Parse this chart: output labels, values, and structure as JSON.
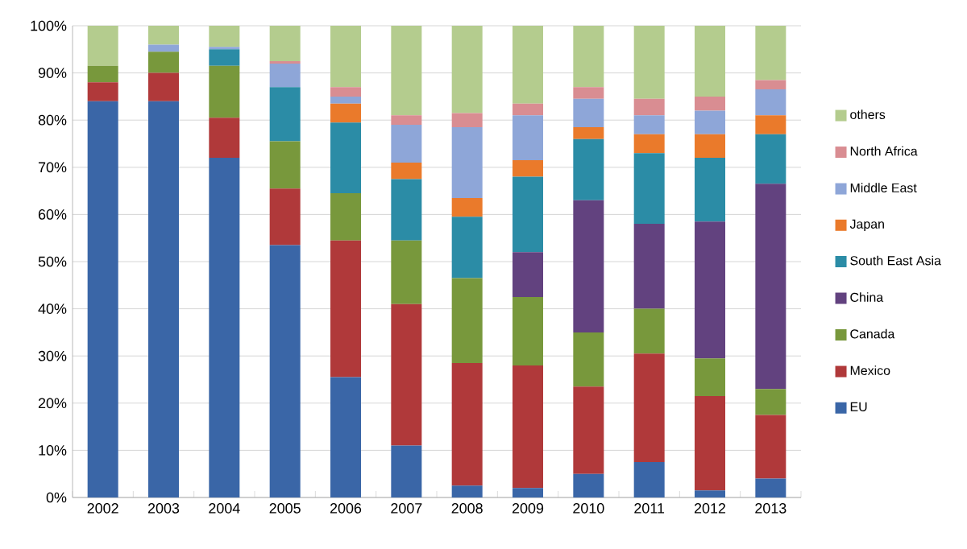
{
  "chart_data": {
    "type": "bar",
    "stacked": true,
    "categories": [
      "2002",
      "2003",
      "2004",
      "2005",
      "2006",
      "2007",
      "2008",
      "2009",
      "2010",
      "2011",
      "2012",
      "2013"
    ],
    "series": [
      {
        "name": "EU",
        "color": "#3a66a7",
        "values": [
          84,
          84,
          72,
          53.5,
          25.5,
          11,
          2.5,
          2,
          5,
          7.5,
          1.5,
          4
        ]
      },
      {
        "name": "Mexico",
        "color": "#b0393a",
        "values": [
          4,
          6,
          8.5,
          12,
          29,
          30,
          26,
          26,
          18.5,
          23,
          20,
          13.5
        ]
      },
      {
        "name": "Canada",
        "color": "#78983c",
        "values": [
          3.5,
          4.5,
          11,
          10,
          10,
          13.5,
          18,
          14.5,
          11.5,
          9.5,
          8,
          5.5
        ]
      },
      {
        "name": "China",
        "color": "#62427f",
        "values": [
          0,
          0,
          0,
          0,
          0,
          0,
          0,
          9.5,
          28,
          18,
          29,
          43.5
        ]
      },
      {
        "name": "South East Asia",
        "color": "#2b8ca6",
        "values": [
          0,
          0,
          3.5,
          11.5,
          15,
          13,
          13,
          16,
          13,
          15,
          13.5,
          10.5
        ]
      },
      {
        "name": "Japan",
        "color": "#ea7a2b",
        "values": [
          0,
          0,
          0,
          0,
          4,
          3.5,
          4,
          3.5,
          2.5,
          4,
          5,
          4
        ]
      },
      {
        "name": "Middle East",
        "color": "#8ea6d8",
        "values": [
          0,
          1.5,
          0.5,
          5,
          1.5,
          8,
          15,
          9.5,
          6,
          4,
          5,
          5.5
        ]
      },
      {
        "name": "North Africa",
        "color": "#d98d92",
        "values": [
          0,
          0,
          0,
          0.5,
          2,
          2,
          3,
          2.5,
          2.5,
          3.5,
          3,
          2
        ]
      },
      {
        "name": "others",
        "color": "#b4cc8e",
        "values": [
          8.5,
          4,
          4.5,
          7.5,
          13,
          19,
          18.5,
          16.5,
          13,
          15.5,
          15,
          11.5
        ]
      }
    ],
    "ylim": [
      0,
      100
    ],
    "yticks": [
      {
        "value": 0,
        "label": "0%"
      },
      {
        "value": 10,
        "label": "10%"
      },
      {
        "value": 20,
        "label": "20%"
      },
      {
        "value": 30,
        "label": "30%"
      },
      {
        "value": 40,
        "label": "40%"
      },
      {
        "value": 50,
        "label": "50%"
      },
      {
        "value": 60,
        "label": "60%"
      },
      {
        "value": 70,
        "label": "70%"
      },
      {
        "value": 80,
        "label": "80%"
      },
      {
        "value": 90,
        "label": "90%"
      },
      {
        "value": 100,
        "label": "100%"
      }
    ],
    "grid": "y",
    "legend": "right"
  }
}
